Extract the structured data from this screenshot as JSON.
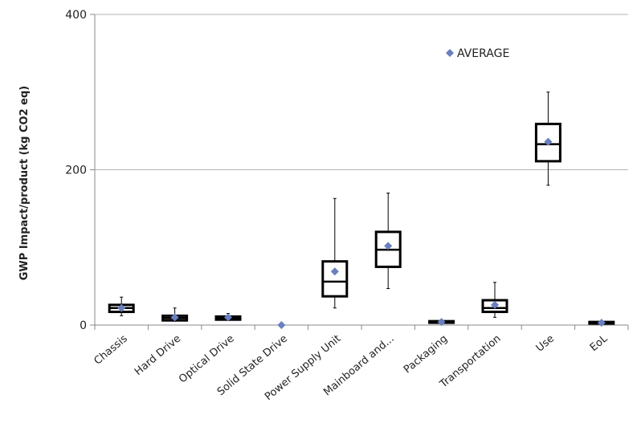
{
  "chart_data": {
    "type": "boxplot",
    "ylabel": "GWP Impact/product (kg CO2 eq)",
    "xlabel": "",
    "ylim": [
      0,
      400
    ],
    "yticks": [
      0,
      200,
      400
    ],
    "grid": true,
    "legend": {
      "label": "AVERAGE",
      "placement": "top-right"
    },
    "colors": {
      "box": "#000000",
      "average_marker": "#6a7fbf",
      "grid": "#b5b5b5"
    },
    "categories": [
      "Chassis",
      "Hard Drive",
      "Optical Drive",
      "Solid State Drive",
      "Power Supply Unit",
      "Mainboard and...",
      "Packaging",
      "Transportation",
      "Use",
      "EoL"
    ],
    "boxes": [
      {
        "category": "Chassis",
        "min": 12,
        "q1": 17,
        "median": 22,
        "q3": 26,
        "max": 36,
        "average": 22
      },
      {
        "category": "Hard Drive",
        "min": 5,
        "q1": 6,
        "median": 9,
        "q3": 12,
        "max": 22,
        "average": 10
      },
      {
        "category": "Optical Drive",
        "min": 6,
        "q1": 7,
        "median": 9,
        "q3": 11,
        "max": 15,
        "average": 10
      },
      {
        "category": "Solid State Drive",
        "min": 0,
        "q1": 0,
        "median": 0,
        "q3": 0,
        "max": 0,
        "average": 0
      },
      {
        "category": "Power Supply Unit",
        "min": 22,
        "q1": 37,
        "median": 56,
        "q3": 82,
        "max": 163,
        "average": 69
      },
      {
        "category": "Mainboard and...",
        "min": 47,
        "q1": 75,
        "median": 97,
        "q3": 120,
        "max": 170,
        "average": 102
      },
      {
        "category": "Packaging",
        "min": 2,
        "q1": 3,
        "median": 4,
        "q3": 5,
        "max": 6,
        "average": 4
      },
      {
        "category": "Transportation",
        "min": 10,
        "q1": 17,
        "median": 22,
        "q3": 32,
        "max": 55,
        "average": 26
      },
      {
        "category": "Use",
        "min": 180,
        "q1": 211,
        "median": 233,
        "q3": 259,
        "max": 300,
        "average": 236
      },
      {
        "category": "EoL",
        "min": 1,
        "q1": 2,
        "median": 3,
        "q3": 4,
        "max": 4,
        "average": 3
      }
    ]
  }
}
